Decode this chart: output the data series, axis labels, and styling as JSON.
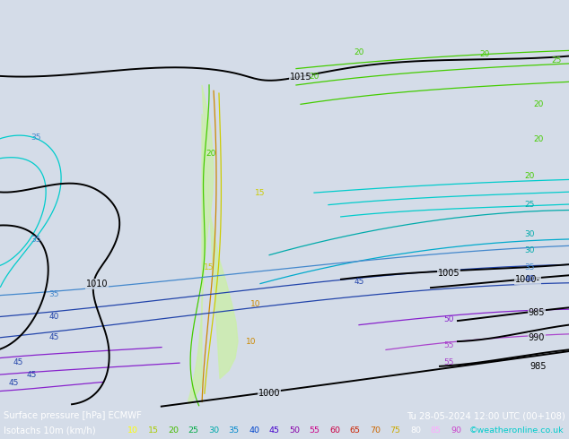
{
  "title_line1": "Surface pressure [hPa] ECMWF",
  "title_line2": "Tu 28-05-2024 12:00 UTC (00+108)",
  "label_line": "Isotachs 10m (km/h)",
  "credit": "©weatheronline.co.uk",
  "legend_values": [
    10,
    15,
    20,
    25,
    30,
    35,
    40,
    45,
    50,
    55,
    60,
    65,
    70,
    75,
    80,
    85,
    90
  ],
  "legend_colors": [
    "#ffff00",
    "#ccee00",
    "#88cc00",
    "#44aa00",
    "#00cc44",
    "#00ccaa",
    "#0088cc",
    "#0044cc",
    "#4400cc",
    "#8800cc",
    "#cc00aa",
    "#cc0044",
    "#cc4400",
    "#cc8800",
    "#ccaa00",
    "#ee88ee",
    "#cc44cc"
  ],
  "bg_color": "#d4dce8",
  "bar_color": "#000018",
  "fig_width": 6.34,
  "fig_height": 4.9,
  "dpi": 100
}
